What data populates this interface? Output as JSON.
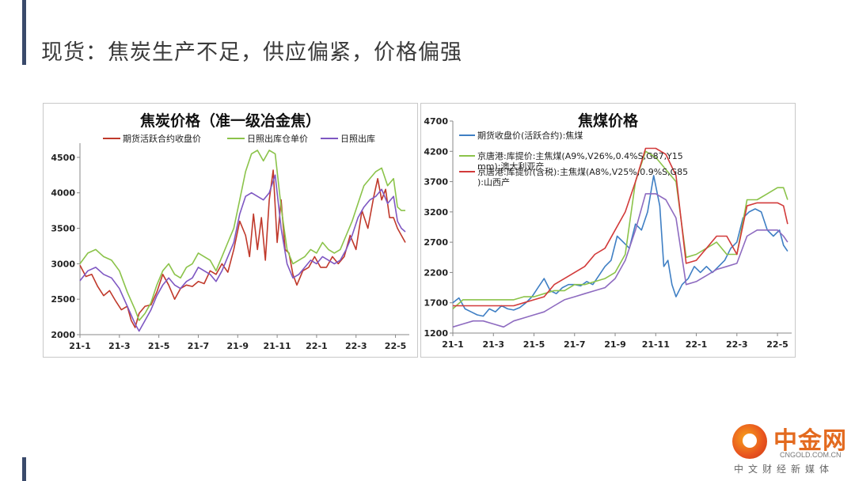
{
  "slide": {
    "title": "现货：焦炭生产不足，供应偏紧，价格偏强"
  },
  "watermark": {
    "name": "中金网",
    "url": "CNGOLD.COM.CN",
    "slogan": "中文财经新媒体"
  },
  "chart_data": [
    {
      "type": "line",
      "title": "焦炭价格（准一级冶金焦）",
      "ylim": [
        2000,
        4700
      ],
      "yticks": [
        "2000",
        "2500",
        "3000",
        "3500",
        "4000",
        "4500"
      ],
      "xticks": [
        "21-1",
        "21-3",
        "21-5",
        "21-7",
        "21-9",
        "21-11",
        "22-1",
        "22-3",
        "22-5"
      ],
      "xlim": [
        0,
        16.7
      ],
      "grid": false,
      "legend_position": "top",
      "series": [
        {
          "name": "期货活跃合约收盘价",
          "color": "#c0392b",
          "x": [
            0,
            0.3,
            0.6,
            0.9,
            1.2,
            1.5,
            1.8,
            2.1,
            2.4,
            2.6,
            2.8,
            3.0,
            3.3,
            3.6,
            3.9,
            4.2,
            4.5,
            4.8,
            5.1,
            5.4,
            5.7,
            6.0,
            6.3,
            6.6,
            6.9,
            7.2,
            7.5,
            7.8,
            8.1,
            8.4,
            8.6,
            8.8,
            9.0,
            9.2,
            9.4,
            9.6,
            9.8,
            10.0,
            10.2,
            10.4,
            10.6,
            10.8,
            11.0,
            11.3,
            11.6,
            11.9,
            12.2,
            12.5,
            12.8,
            13.1,
            13.4,
            13.7,
            14.0,
            14.3,
            14.6,
            14.9,
            15.1,
            15.3,
            15.5,
            15.7,
            15.9,
            16.1,
            16.3,
            16.5
          ],
          "values": [
            2980,
            2820,
            2850,
            2680,
            2550,
            2620,
            2480,
            2350,
            2400,
            2200,
            2100,
            2300,
            2400,
            2420,
            2600,
            2850,
            2700,
            2500,
            2650,
            2700,
            2680,
            2750,
            2720,
            2900,
            2850,
            3000,
            2880,
            3200,
            3600,
            3400,
            3100,
            3700,
            3200,
            3650,
            3050,
            3900,
            4320,
            3300,
            3900,
            3200,
            3150,
            2850,
            2700,
            2900,
            2950,
            3100,
            2950,
            2950,
            3100,
            3000,
            3100,
            3400,
            3200,
            3750,
            3500,
            3950,
            4200,
            3900,
            4050,
            3650,
            3650,
            3500,
            3400,
            3300
          ]
        },
        {
          "name": "日照出库仓单价",
          "color": "#8bc34a",
          "x": [
            0,
            0.4,
            0.8,
            1.2,
            1.6,
            2.0,
            2.4,
            2.8,
            3.0,
            3.3,
            3.6,
            3.9,
            4.2,
            4.5,
            4.8,
            5.1,
            5.4,
            5.7,
            6.0,
            6.3,
            6.6,
            6.9,
            7.2,
            7.5,
            7.8,
            8.1,
            8.4,
            8.7,
            9.0,
            9.3,
            9.6,
            9.9,
            10.2,
            10.5,
            10.8,
            11.1,
            11.4,
            11.7,
            12.0,
            12.3,
            12.6,
            12.9,
            13.2,
            13.5,
            13.8,
            14.1,
            14.4,
            14.7,
            15.0,
            15.3,
            15.6,
            15.9,
            16.1,
            16.3,
            16.5
          ],
          "values": [
            3000,
            3150,
            3200,
            3100,
            3050,
            2900,
            2600,
            2350,
            2200,
            2300,
            2450,
            2700,
            2900,
            3000,
            2850,
            2800,
            2950,
            3000,
            3150,
            3100,
            3050,
            2900,
            3100,
            3300,
            3500,
            3900,
            4300,
            4550,
            4600,
            4450,
            4600,
            4550,
            3800,
            3200,
            3000,
            3050,
            3100,
            3200,
            3150,
            3300,
            3200,
            3150,
            3200,
            3400,
            3600,
            3850,
            4100,
            4200,
            4300,
            4350,
            4100,
            4200,
            3800,
            3750,
            3750
          ]
        },
        {
          "name": "日照出库",
          "color": "#7e57c2",
          "x": [
            0,
            0.4,
            0.8,
            1.2,
            1.6,
            2.0,
            2.4,
            2.8,
            3.0,
            3.3,
            3.6,
            3.9,
            4.2,
            4.5,
            4.8,
            5.1,
            5.4,
            5.7,
            6.0,
            6.3,
            6.6,
            6.9,
            7.2,
            7.5,
            7.8,
            8.1,
            8.4,
            8.7,
            9.0,
            9.3,
            9.6,
            9.9,
            10.2,
            10.5,
            10.8,
            11.1,
            11.4,
            11.7,
            12.0,
            12.3,
            12.6,
            12.9,
            13.2,
            13.5,
            13.8,
            14.1,
            14.4,
            14.7,
            15.0,
            15.3,
            15.6,
            15.9,
            16.1,
            16.3,
            16.5
          ],
          "values": [
            2760,
            2900,
            2950,
            2850,
            2800,
            2650,
            2400,
            2150,
            2050,
            2200,
            2350,
            2550,
            2700,
            2800,
            2700,
            2650,
            2750,
            2800,
            2950,
            2900,
            2850,
            2750,
            2900,
            3100,
            3300,
            3700,
            3950,
            4000,
            3950,
            3900,
            4000,
            4250,
            3500,
            3000,
            2800,
            2850,
            2950,
            3050,
            3000,
            3100,
            3050,
            3000,
            3050,
            3200,
            3400,
            3650,
            3800,
            3900,
            3950,
            4050,
            3850,
            3950,
            3600,
            3500,
            3450
          ]
        }
      ]
    },
    {
      "type": "line",
      "title": "焦煤价格",
      "ylim": [
        1200,
        4700
      ],
      "yticks": [
        "1200",
        "1700",
        "2200",
        "2700",
        "3200",
        "3700",
        "4200",
        "4700"
      ],
      "xticks": [
        "21-1",
        "21-3",
        "21-5",
        "21-7",
        "21-9",
        "21-11",
        "22-1",
        "22-3",
        "22-5"
      ],
      "xlim": [
        0,
        16.7
      ],
      "grid": false,
      "legend_position": "top-left",
      "series": [
        {
          "name": "期货收盘价(活跃合约):焦煤",
          "color": "#3f7fc4",
          "x": [
            0,
            0.3,
            0.6,
            0.9,
            1.2,
            1.5,
            1.8,
            2.1,
            2.4,
            2.7,
            3.0,
            3.3,
            3.6,
            3.9,
            4.2,
            4.5,
            4.8,
            5.1,
            5.4,
            5.7,
            6.0,
            6.3,
            6.6,
            6.9,
            7.2,
            7.5,
            7.8,
            8.1,
            8.4,
            8.7,
            9.0,
            9.3,
            9.6,
            9.9,
            10.2,
            10.4,
            10.6,
            10.8,
            11.0,
            11.3,
            11.6,
            11.9,
            12.2,
            12.5,
            12.8,
            13.1,
            13.4,
            13.7,
            14.0,
            14.3,
            14.6,
            14.9,
            15.2,
            15.5,
            15.8,
            16.1,
            16.3,
            16.5
          ],
          "values": [
            1700,
            1780,
            1600,
            1550,
            1500,
            1480,
            1600,
            1550,
            1650,
            1600,
            1580,
            1620,
            1700,
            1800,
            1950,
            2100,
            1900,
            1850,
            1950,
            2000,
            2000,
            1980,
            2050,
            2000,
            2150,
            2300,
            2400,
            2800,
            2700,
            2600,
            3000,
            2900,
            3200,
            3800,
            3300,
            2300,
            2400,
            2000,
            1800,
            2000,
            2100,
            2300,
            2200,
            2300,
            2200,
            2300,
            2400,
            2600,
            2700,
            3100,
            3200,
            3250,
            3200,
            2900,
            2800,
            2900,
            2650,
            2550
          ]
        },
        {
          "name": "京唐港:库提价:主焦煤(A9%,V26%,0.4%S,G87,Y15mm):澳大利亚产",
          "color": "#8bc34a",
          "x": [
            0,
            0.5,
            1.0,
            1.5,
            2.0,
            2.5,
            3.0,
            3.5,
            4.0,
            4.5,
            5.0,
            5.5,
            6.0,
            6.5,
            7.0,
            7.5,
            8.0,
            8.5,
            9.0,
            9.5,
            10.0,
            10.5,
            11.0,
            11.5,
            12.0,
            12.5,
            13.0,
            13.5,
            14.0,
            14.5,
            15.0,
            15.5,
            16.0,
            16.3,
            16.5
          ],
          "values": [
            1600,
            1750,
            1750,
            1750,
            1750,
            1750,
            1750,
            1800,
            1800,
            1850,
            1900,
            1900,
            2000,
            2000,
            2050,
            2100,
            2200,
            2500,
            3700,
            4200,
            4100,
            3900,
            3700,
            2450,
            2500,
            2600,
            2700,
            2500,
            2500,
            3400,
            3400,
            3500,
            3600,
            3600,
            3400
          ]
        },
        {
          "name": "京唐港:库提价(含税):主焦煤(A8%,V25%,0.9%S,G85):山西产",
          "color": "#d23a3a",
          "x": [
            0,
            0.5,
            1.0,
            1.5,
            2.0,
            2.5,
            3.0,
            3.5,
            4.0,
            4.5,
            5.0,
            5.5,
            6.0,
            6.5,
            7.0,
            7.5,
            8.0,
            8.5,
            9.0,
            9.5,
            10.0,
            10.5,
            11.0,
            11.5,
            12.0,
            12.5,
            13.0,
            13.5,
            14.0,
            14.5,
            15.0,
            15.5,
            16.0,
            16.3,
            16.5
          ],
          "values": [
            1650,
            1650,
            1650,
            1650,
            1650,
            1650,
            1650,
            1700,
            1750,
            1800,
            2000,
            2100,
            2200,
            2300,
            2500,
            2600,
            2900,
            3200,
            3700,
            4250,
            4250,
            4150,
            3800,
            2350,
            2400,
            2600,
            2800,
            2800,
            2500,
            3300,
            3350,
            3350,
            3350,
            3300,
            3000
          ]
        },
        {
          "name": "",
          "color": "#8e6bc0",
          "x": [
            0,
            0.5,
            1.0,
            1.5,
            2.0,
            2.5,
            3.0,
            3.5,
            4.0,
            4.5,
            5.0,
            5.5,
            6.0,
            6.5,
            7.0,
            7.5,
            8.0,
            8.5,
            9.0,
            9.5,
            10.0,
            10.5,
            11.0,
            11.5,
            12.0,
            12.5,
            13.0,
            13.5,
            14.0,
            14.5,
            15.0,
            15.5,
            16.0,
            16.3,
            16.5
          ],
          "values": [
            1300,
            1350,
            1400,
            1400,
            1350,
            1300,
            1400,
            1450,
            1500,
            1550,
            1650,
            1750,
            1800,
            1850,
            1900,
            1950,
            2100,
            2400,
            2900,
            3500,
            3500,
            3400,
            3100,
            2000,
            2050,
            2150,
            2250,
            2300,
            2350,
            2800,
            2900,
            2900,
            2900,
            2800,
            2700
          ]
        }
      ]
    }
  ]
}
